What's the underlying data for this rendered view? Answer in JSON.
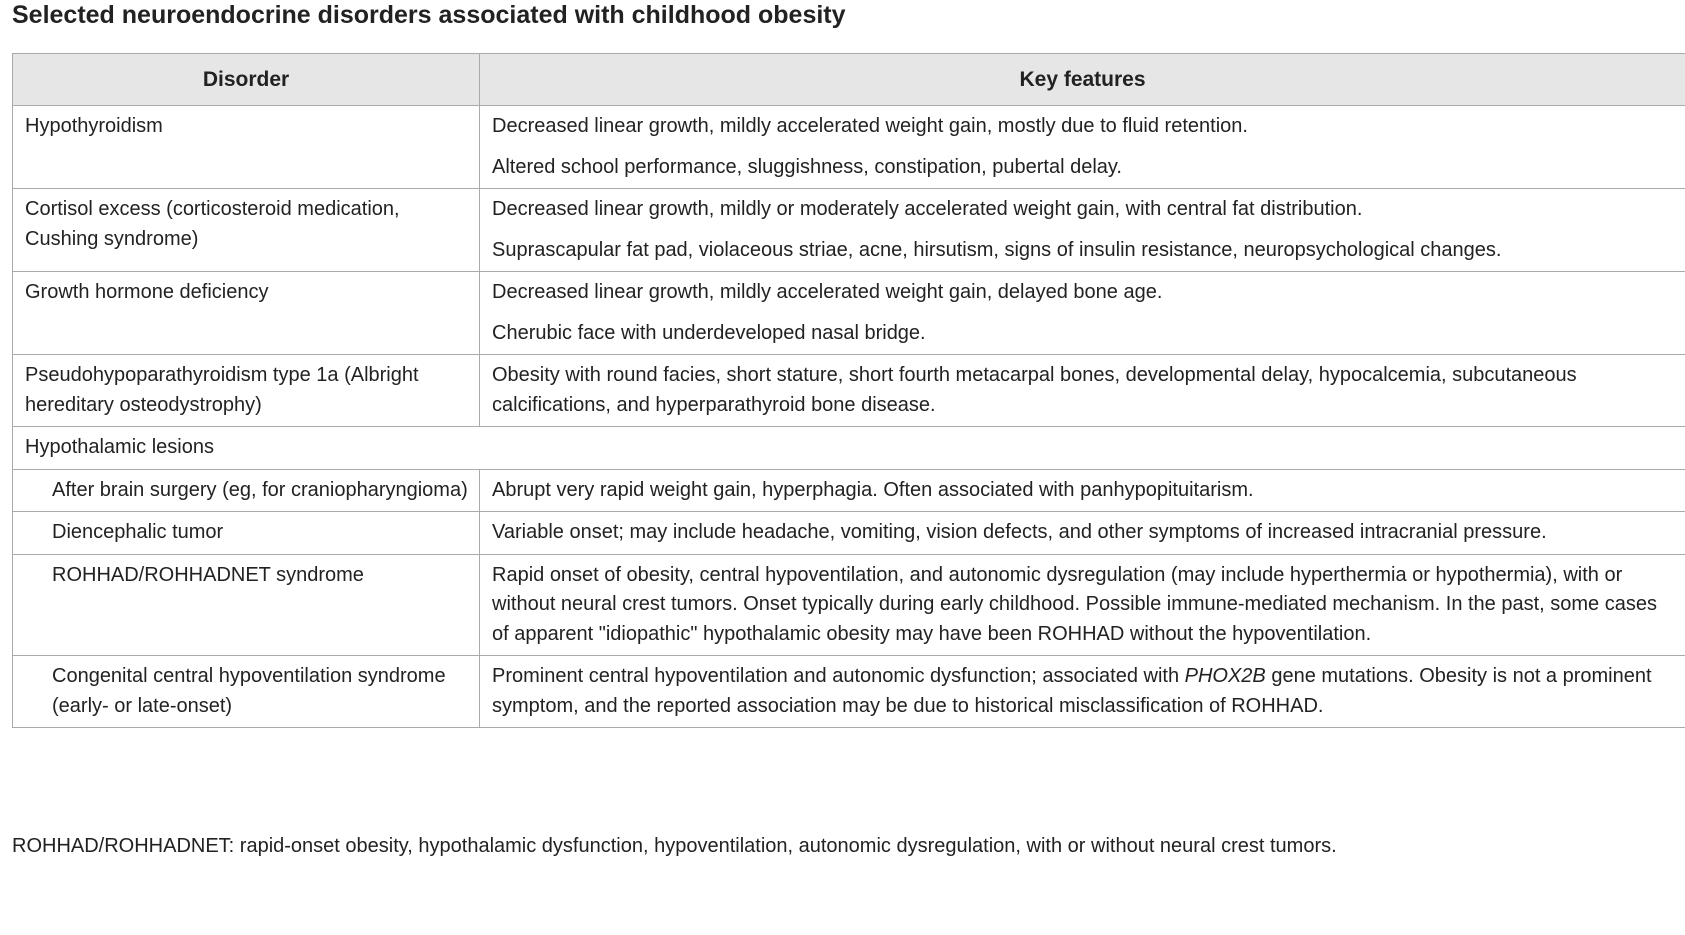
{
  "title": "Selected neuroendocrine disorders associated with childhood obesity",
  "table": {
    "headers": [
      "Disorder",
      "Key features"
    ],
    "rows": [
      {
        "disorder": "Hypothyroidism",
        "features": [
          "Decreased linear growth, mildly accelerated weight gain, mostly due to fluid retention.",
          "Altered school performance, sluggishness, constipation, pubertal delay."
        ]
      },
      {
        "disorder": "Cortisol excess (corticosteroid medication, Cushing syndrome)",
        "features": [
          "Decreased linear growth, mildly or moderately accelerated weight gain, with central fat distribution.",
          "Suprascapular fat pad, violaceous striae, acne, hirsutism, signs of insulin resistance, neuropsychological changes."
        ]
      },
      {
        "disorder": "Growth hormone deficiency",
        "features": [
          "Decreased linear growth, mildly accelerated weight gain, delayed bone age.",
          "Cherubic face with underdeveloped nasal bridge."
        ]
      },
      {
        "disorder": "Pseudohypoparathyroidism type 1a (Albright hereditary osteodystrophy)",
        "features": [
          "Obesity with round facies, short stature, short fourth metacarpal bones, developmental delay, hypocalcemia, subcutaneous calcifications, and hyperparathyroid bone disease."
        ]
      }
    ],
    "group_label": "Hypothalamic lesions",
    "sub_rows": [
      {
        "disorder": "After brain surgery (eg, for craniopharyngioma)",
        "features": "Abrupt very rapid weight gain, hyperphagia. Often associated with panhypopituitarism."
      },
      {
        "disorder": "Diencephalic tumor",
        "features": "Variable onset; may include headache, vomiting, vision defects, and other symptoms of increased intracranial pressure."
      },
      {
        "disorder": "ROHHAD/ROHHADNET syndrome",
        "features": "Rapid onset of obesity, central hypoventilation, and autonomic dysregulation (may include hyperthermia or hypothermia), with or without neural crest tumors. Onset typically during early childhood. Possible immune-mediated mechanism. In the past, some cases of apparent \"idiopathic\" hypothalamic obesity may have been ROHHAD without the hypoventilation."
      },
      {
        "disorder": "Congenital central hypoventilation syndrome (early- or late-onset)",
        "features_before": "Prominent central hypoventilation and autonomic dysfunction; associated with ",
        "features_gene": "PHOX2B",
        "features_after": " gene mutations. Obesity is not a prominent symptom, and the reported association may be due to historical misclassification of ROHHAD."
      }
    ]
  },
  "footnote": "ROHHAD/ROHHADNET: rapid-onset obesity, hypothalamic dysfunction, hypoventilation, autonomic dysregulation, with or without neural crest tumors."
}
